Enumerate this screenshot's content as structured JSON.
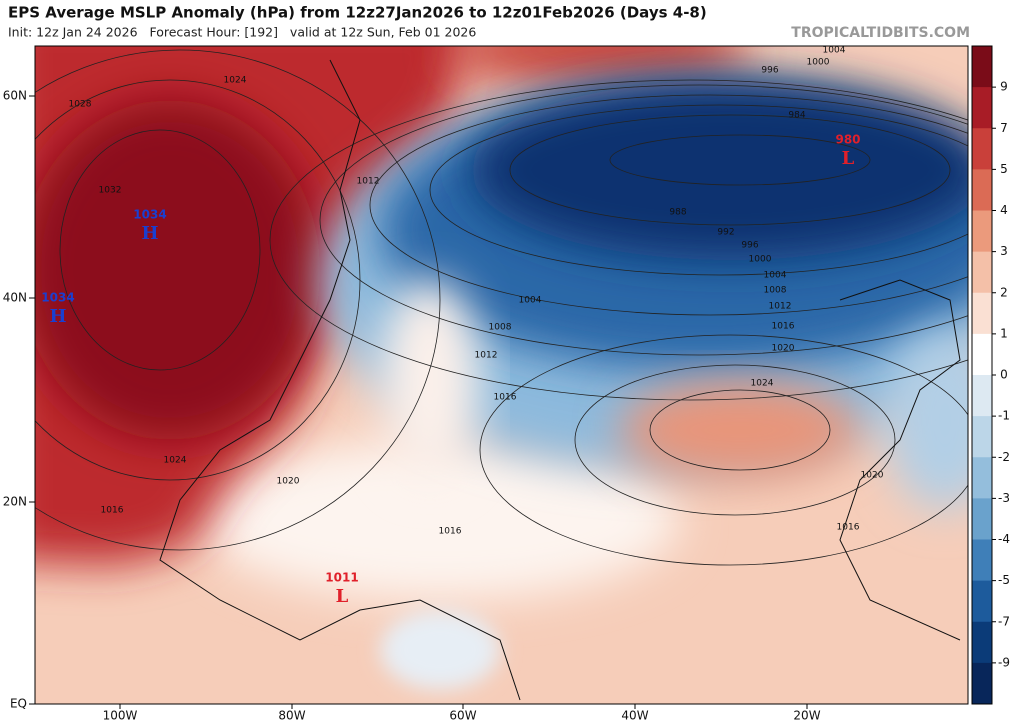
{
  "header": {
    "title": "EPS Average MSLP Anomaly (hPa) from 12z27Jan2026 to 12z01Feb2026 (Days 4-8)",
    "subtitle": "Init: 12z Jan 24 2026   Forecast Hour: [192]   valid at 12z Sun, Feb 01 2026",
    "site": "TROPICALTIDBITS.COM"
  },
  "map": {
    "lat_labels": [
      "60N",
      "40N",
      "20N",
      "EQ"
    ],
    "lon_labels": [
      "100W",
      "80W",
      "60W",
      "40W",
      "20W"
    ],
    "centers": [
      {
        "type": "H",
        "value": "1034"
      },
      {
        "type": "H",
        "value": "1034"
      },
      {
        "type": "L",
        "value": "980"
      },
      {
        "type": "L",
        "value": "1011"
      }
    ],
    "contour_labels": [
      "1024",
      "1028",
      "1032",
      "1024",
      "1020",
      "1016",
      "1012",
      "1004",
      "1008",
      "1012",
      "1016",
      "988",
      "992",
      "996",
      "1000",
      "1004",
      "1008",
      "1012",
      "1016",
      "1020",
      "1024",
      "1020",
      "1016",
      "1016",
      "984",
      "996",
      "1000",
      "1004"
    ]
  },
  "colorbar": {
    "labels": [
      "9",
      "7",
      "5",
      "4",
      "3",
      "2",
      "1",
      "0",
      "-1",
      "-2",
      "-3",
      "-4",
      "-5",
      "-7",
      "-9"
    ]
  }
}
